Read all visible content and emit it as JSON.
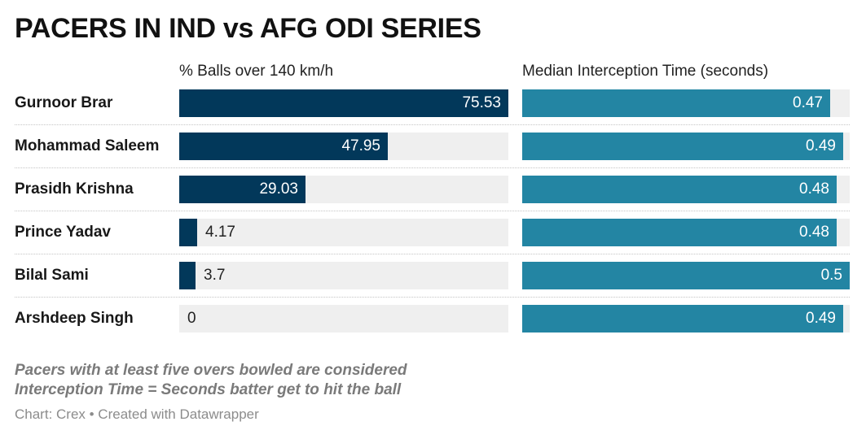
{
  "title": "PACERS IN IND vs AFG ODI SERIES",
  "notes": [
    "Pacers with at least five overs bowled are considered",
    "Interception Time = Seconds batter get to hit the ball"
  ],
  "footer": "Chart: Crex • Created with Datawrapper",
  "colors": {
    "speed_bar": "#02385a",
    "time_bar": "#2385a3",
    "track": "#efefef"
  },
  "chart_data": {
    "type": "bar",
    "orientation": "horizontal",
    "categories": [
      "Gurnoor Brar",
      "Mohammad Saleem",
      "Prasidh Krishna",
      "Prince Yadav",
      "Bilal Sami",
      "Arshdeep Singh"
    ],
    "series": [
      {
        "name": "% Balls over 140 km/h",
        "values": [
          75.53,
          47.95,
          29.03,
          4.17,
          3.7,
          0
        ],
        "labels": [
          "75.53",
          "47.95",
          "29.03",
          "4.17",
          "3.7",
          "0"
        ],
        "max": 75.53
      },
      {
        "name": "Median Interception Time (seconds)",
        "values": [
          0.47,
          0.49,
          0.48,
          0.48,
          0.5,
          0.49
        ],
        "labels": [
          "0.47",
          "0.49",
          "0.48",
          "0.48",
          "0.5",
          "0.49"
        ],
        "max": 0.5
      }
    ]
  }
}
